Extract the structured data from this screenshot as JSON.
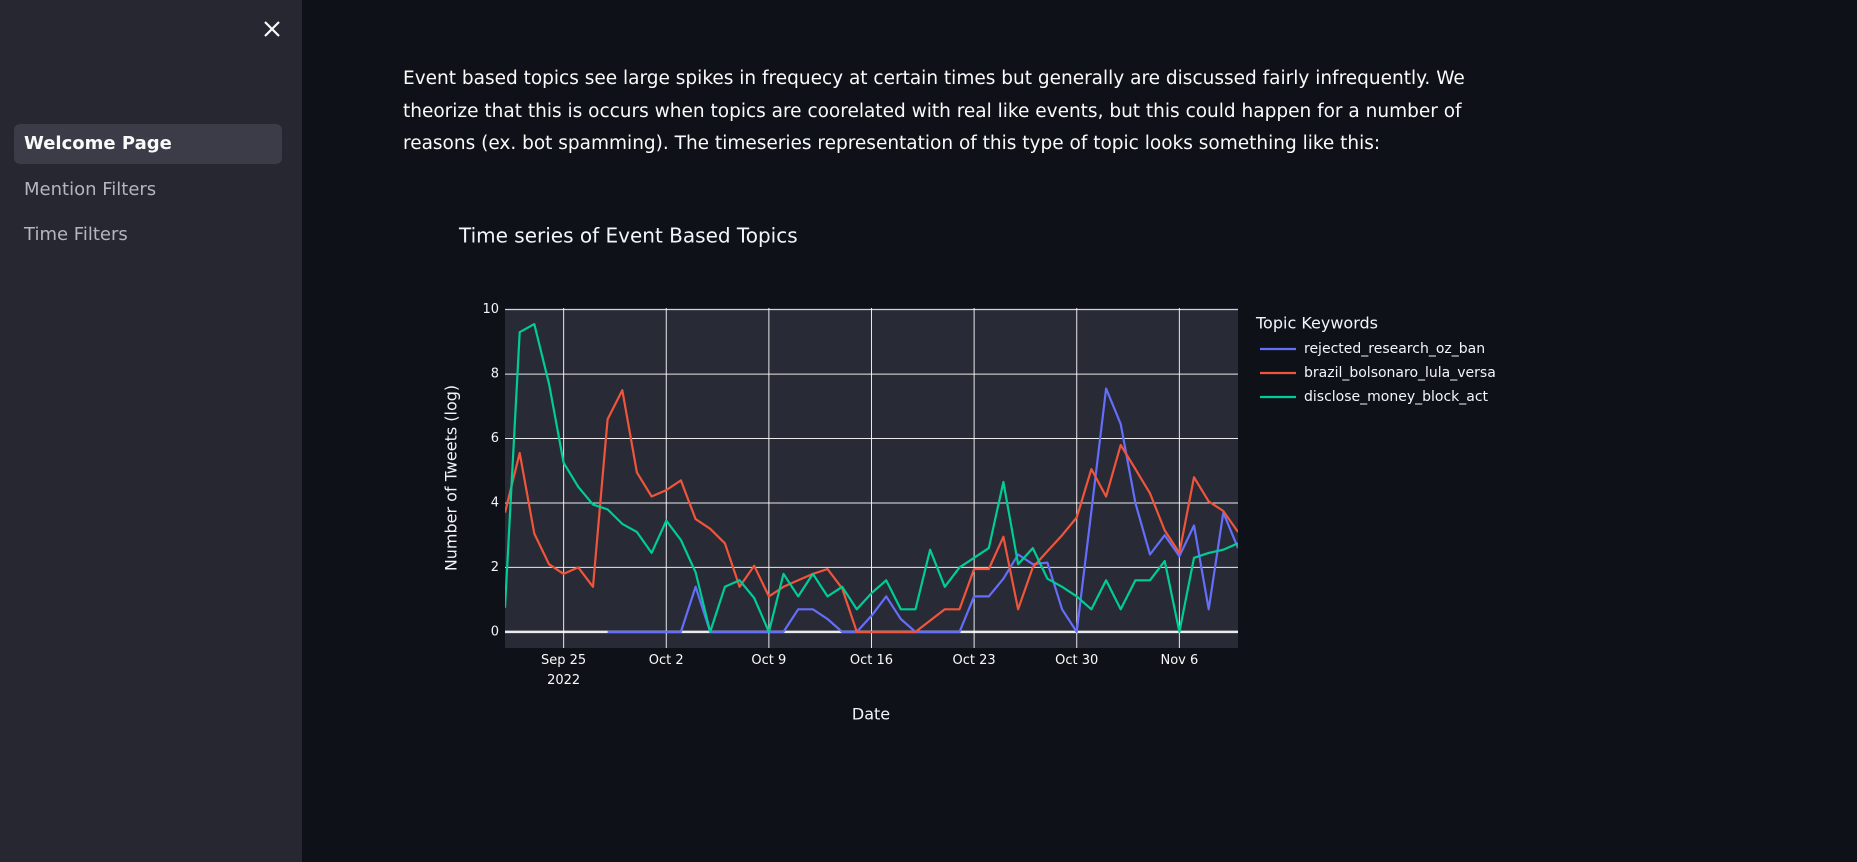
{
  "sidebar": {
    "nav": [
      "Welcome Page",
      "Mention Filters",
      "Time Filters"
    ],
    "active": 0
  },
  "paragraph": "Event based topics see large spikes in frequecy at certain times but generally are discussed fairly infrequently. We theorize that this is occurs when topics are coorelated with real like events, but this could happen for a number of reasons (ex. bot spamming). The timeseries representation of this type of topic looks something like this:",
  "chart_data": {
    "type": "line",
    "title": "Time series of Event Based Topics",
    "x_label": "Date",
    "y_label": "Number of Tweets (log)",
    "legend_title": "Topic Keywords",
    "legend": "right",
    "grid": true,
    "x": [
      "2022-09-21",
      "2022-09-22",
      "2022-09-23",
      "2022-09-24",
      "2022-09-25",
      "2022-09-26",
      "2022-09-27",
      "2022-09-28",
      "2022-09-29",
      "2022-09-30",
      "2022-10-01",
      "2022-10-02",
      "2022-10-03",
      "2022-10-04",
      "2022-10-05",
      "2022-10-06",
      "2022-10-07",
      "2022-10-08",
      "2022-10-09",
      "2022-10-10",
      "2022-10-11",
      "2022-10-12",
      "2022-10-13",
      "2022-10-14",
      "2022-10-15",
      "2022-10-16",
      "2022-10-17",
      "2022-10-18",
      "2022-10-19",
      "2022-10-20",
      "2022-10-21",
      "2022-10-22",
      "2022-10-23",
      "2022-10-24",
      "2022-10-25",
      "2022-10-26",
      "2022-10-27",
      "2022-10-28",
      "2022-10-29",
      "2022-10-30",
      "2022-10-31",
      "2022-11-01",
      "2022-11-02",
      "2022-11-03",
      "2022-11-04",
      "2022-11-05",
      "2022-11-06",
      "2022-11-07",
      "2022-11-08",
      "2022-11-09",
      "2022-11-10"
    ],
    "xlim": [
      "2022-09-21",
      "2022-11-10"
    ],
    "xticks": [
      {
        "value": "2022-09-25",
        "label": "Sep 25\n2022"
      },
      {
        "value": "2022-10-02",
        "label": "Oct 2"
      },
      {
        "value": "2022-10-09",
        "label": "Oct 9"
      },
      {
        "value": "2022-10-16",
        "label": "Oct 16"
      },
      {
        "value": "2022-10-23",
        "label": "Oct 23"
      },
      {
        "value": "2022-10-30",
        "label": "Oct 30"
      },
      {
        "value": "2022-11-06",
        "label": "Nov 6"
      }
    ],
    "ylim": [
      -0.5,
      10.05
    ],
    "yticks": [
      0,
      2,
      4,
      6,
      8,
      10
    ],
    "series": [
      {
        "name": "rejected_research_oz_ban",
        "color": "#636efa",
        "values": [
          null,
          null,
          null,
          null,
          null,
          null,
          null,
          0,
          0,
          0,
          0,
          0,
          0,
          1.4,
          0,
          0,
          0,
          0,
          0,
          0,
          0.7,
          0.7,
          0.4,
          0,
          0,
          0.5,
          1.1,
          0.4,
          0,
          0,
          0,
          0,
          1.1,
          1.1,
          1.65,
          2.4,
          2.1,
          2.15,
          0.7,
          0,
          3.75,
          7.55,
          6.45,
          4.0,
          2.4,
          3.0,
          2.35,
          3.3,
          0.7,
          3.7,
          2.6
        ]
      },
      {
        "name": "brazil_bolsonaro_lula_versa",
        "color": "#ef553b",
        "values": [
          3.7,
          5.55,
          3.05,
          2.1,
          1.8,
          2.0,
          1.4,
          6.6,
          7.5,
          4.95,
          4.2,
          4.4,
          4.7,
          3.5,
          3.2,
          2.75,
          1.4,
          2.05,
          1.1,
          1.4,
          1.6,
          1.8,
          1.95,
          1.35,
          0,
          0,
          0,
          0,
          0,
          0.35,
          0.7,
          0.7,
          1.95,
          1.95,
          2.95,
          0.7,
          2.0,
          2.5,
          3.0,
          3.55,
          5.05,
          4.2,
          5.8,
          5.05,
          4.3,
          3.15,
          2.45,
          4.8,
          4.05,
          3.75,
          3.1
        ]
      },
      {
        "name": "disclose_money_block_act",
        "color": "#00cc96",
        "values": [
          0.75,
          9.3,
          9.55,
          7.7,
          5.25,
          4.5,
          3.95,
          3.8,
          3.35,
          3.1,
          2.45,
          3.45,
          2.85,
          1.85,
          0,
          1.4,
          1.6,
          1.05,
          0,
          1.8,
          1.1,
          1.8,
          1.1,
          1.4,
          0.7,
          1.2,
          1.6,
          0.7,
          0.7,
          2.55,
          1.4,
          2.0,
          2.3,
          2.6,
          4.65,
          2.1,
          2.6,
          1.65,
          1.4,
          1.1,
          0.7,
          1.6,
          0.7,
          1.6,
          1.6,
          2.2,
          0,
          2.3,
          2.45,
          2.55,
          2.75
        ]
      }
    ]
  }
}
